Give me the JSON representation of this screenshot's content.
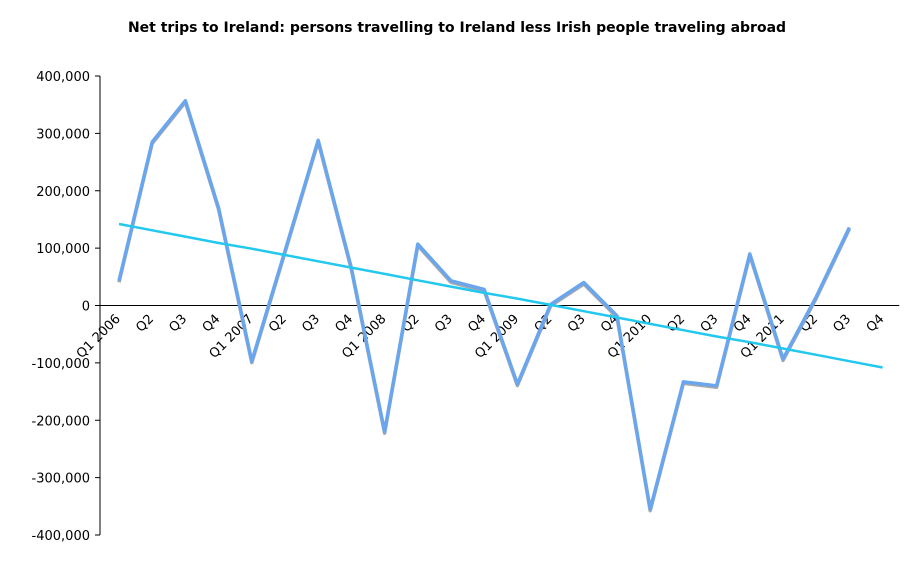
{
  "chart_data": {
    "type": "line",
    "title": "Net trips to Ireland: persons travelling to Ireland less Irish people traveling abroad",
    "categories": [
      "Q1 2006",
      "Q2",
      "Q3",
      "Q4",
      "Q1 2007",
      "Q2",
      "Q3",
      "Q4",
      "Q1 2008",
      "Q2",
      "Q3",
      "Q4",
      "Q1 2009",
      "Q2",
      "Q3",
      "Q4",
      "Q1 2010",
      "Q2",
      "Q3",
      "Q4",
      "Q1 2011",
      "Q2",
      "Q3",
      "Q4"
    ],
    "series": [
      {
        "color": "#6aa6ee",
        "values": [
          43000,
          285000,
          357000,
          170000,
          -97000,
          95000,
          288000,
          65000,
          -220000,
          107000,
          43000,
          28000,
          -137000,
          2000,
          40000,
          -18000,
          -355000,
          -133000,
          -140000,
          90000,
          -93000,
          15000,
          136000,
          null
        ]
      },
      {
        "color": "#22c8ee",
        "values": [
          142000,
          131000,
          120000,
          109000,
          99000,
          88000,
          77000,
          66000,
          55000,
          44000,
          33000,
          22000,
          12000,
          1000,
          -10000,
          -21000,
          -32000,
          -43000,
          -54000,
          -64000,
          -75000,
          -86000,
          -97000,
          -108000
        ]
      }
    ],
    "ylim": [
      -400000,
      400000
    ],
    "yticks": [
      {
        "value": -400000,
        "label": "-400,000"
      },
      {
        "value": -300000,
        "label": "-300,000"
      },
      {
        "value": -200000,
        "label": "-200,000"
      },
      {
        "value": -100000,
        "label": "-100,000"
      },
      0,
      {
        "value": 100000,
        "label": "100,000"
      },
      {
        "value": 200000,
        "label": "200,000"
      },
      {
        "value": 300000,
        "label": "300,000"
      },
      {
        "value": 400000,
        "label": "400,000"
      }
    ]
  }
}
